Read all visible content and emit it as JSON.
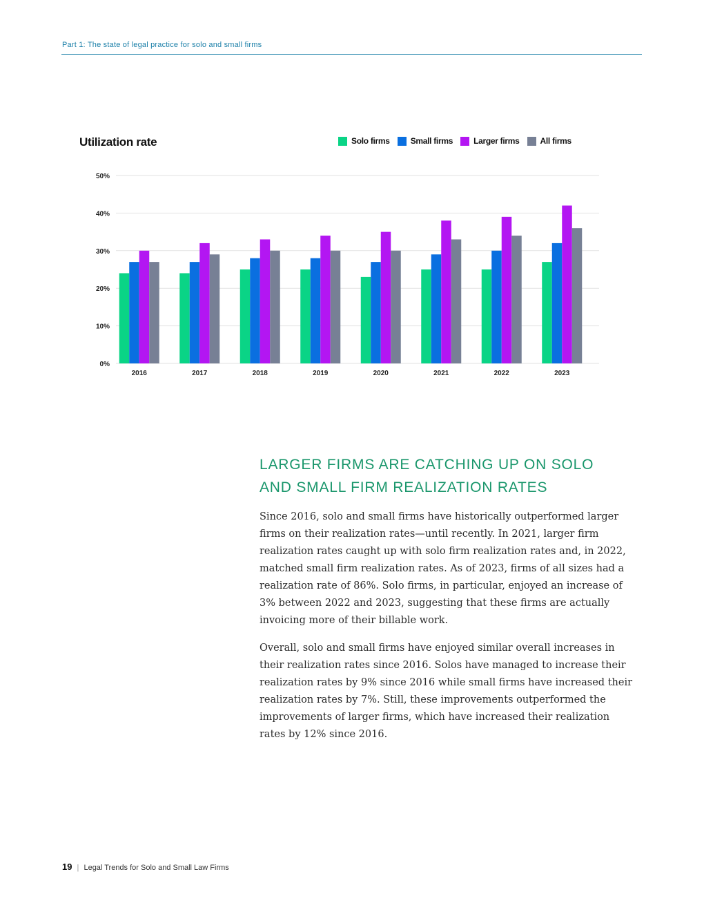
{
  "running_head": "Part 1: The state of legal practice for solo and small firms",
  "colors": {
    "accent": "#1a7fa8",
    "heading_green": "#19966b",
    "grid": "#e2e2e2"
  },
  "chart_data": {
    "type": "bar",
    "title": "Utilization rate",
    "categories": [
      "2016",
      "2017",
      "2018",
      "2019",
      "2020",
      "2021",
      "2022",
      "2023"
    ],
    "series": [
      {
        "name": "Solo firms",
        "color": "#0ad486",
        "values": [
          24,
          24,
          25,
          25,
          23,
          25,
          25,
          27
        ]
      },
      {
        "name": "Small firms",
        "color": "#0a6fe0",
        "values": [
          27,
          27,
          28,
          28,
          27,
          29,
          30,
          32
        ]
      },
      {
        "name": "Larger firms",
        "color": "#b316f2",
        "values": [
          30,
          32,
          33,
          34,
          35,
          38,
          39,
          42
        ]
      },
      {
        "name": "All firms",
        "color": "#778095",
        "values": [
          27,
          29,
          30,
          30,
          30,
          33,
          34,
          36
        ]
      }
    ],
    "yticks": [
      "0%",
      "10%",
      "20%",
      "30%",
      "40%",
      "50%"
    ],
    "ylim": [
      0,
      50
    ],
    "grid": true,
    "legend_position": "top-right"
  },
  "section": {
    "heading_line1": "LARGER FIRMS ARE CATCHING UP ON SOLO",
    "heading_line2": "AND SMALL FIRM REALIZATION RATES",
    "paragraph1": "Since 2016, solo and small firms have historically outperformed larger firms on their realization rates—until recently. In 2021, larger firm realization rates caught up with solo firm realization rates and, in 2022, matched small firm realization rates. As of 2023, firms of all sizes had a realization rate of 86%. Solo firms, in particular, enjoyed an increase of 3% between 2022 and 2023, suggesting that these firms are actually invoicing more of their billable work.",
    "paragraph2": "Overall, solo and small firms have enjoyed similar overall increases in their realization rates since 2016. Solos have managed to increase their realization rates by 9% since 2016 while small firms have increased their realization rates by 7%. Still, these improvements outperformed the improvements of larger firms, which have increased their realization rates by 12% since 2016."
  },
  "footer": {
    "page_number": "19",
    "separator": "|",
    "publication": "Legal Trends for Solo and Small Law Firms"
  }
}
